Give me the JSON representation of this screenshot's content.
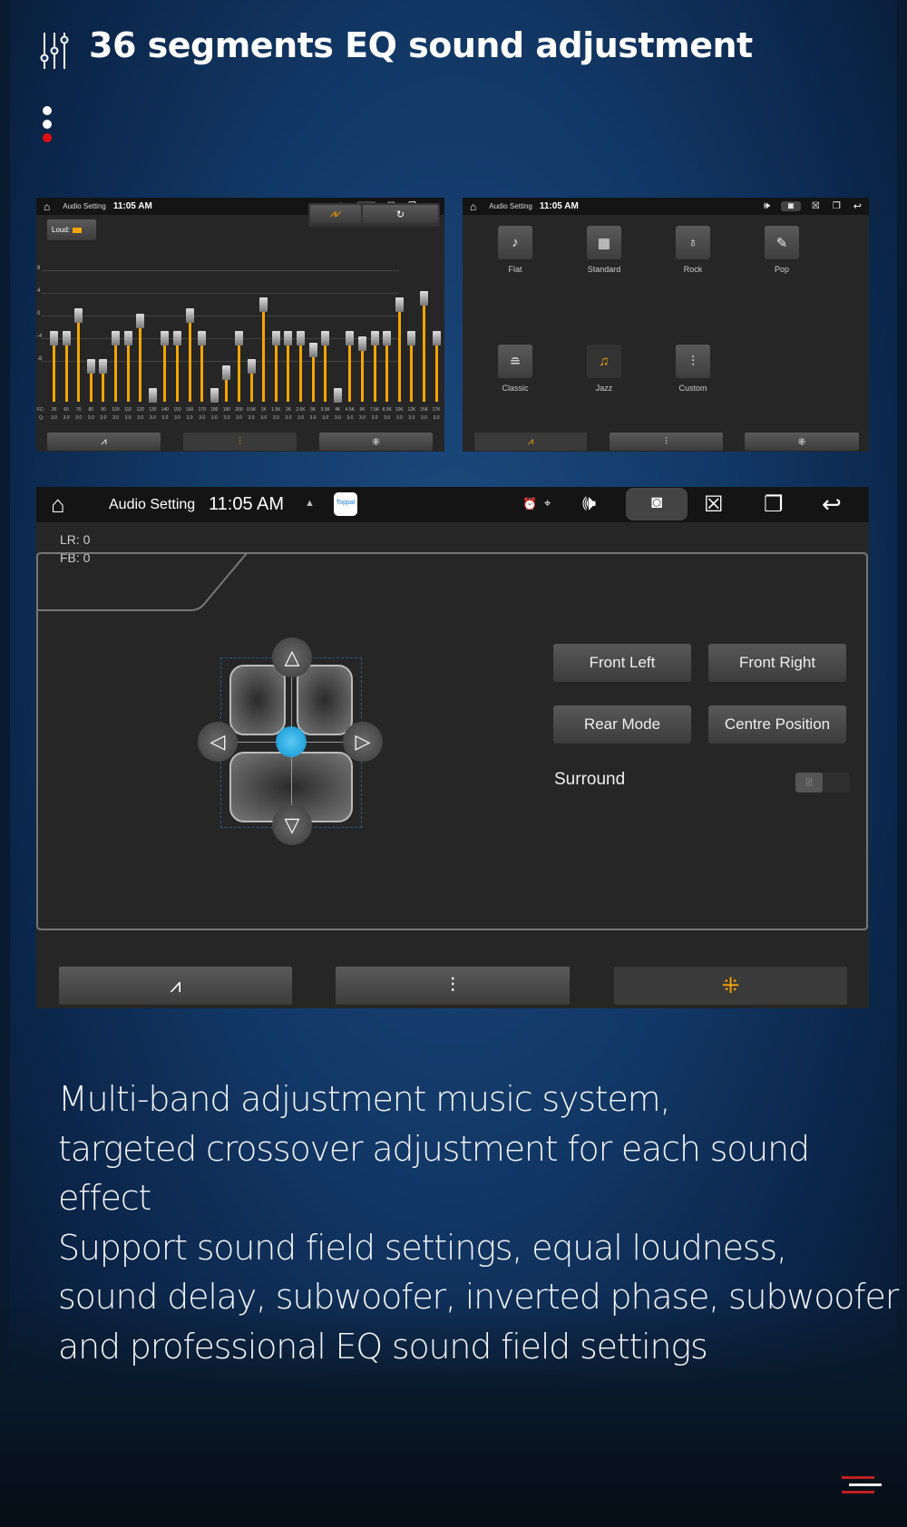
{
  "title": "36 segments EQ sound adjustment",
  "colors": {
    "accent": "#f5a500",
    "selected_blue": "#2aa9e0",
    "page_dot_active": "#e01010"
  },
  "status_bar": {
    "app": "Audio Setting",
    "time": "11:05 AM",
    "app_badge": "Toppal"
  },
  "eq_panel": {
    "loud_label": "Loud:",
    "y_ticks": [
      "8",
      "4",
      "0",
      "-4",
      "-8"
    ],
    "fc_prefix": "FC:",
    "q_prefix": "Q:",
    "bands": [
      {
        "fc": "30",
        "q": "3.0",
        "gain": -4
      },
      {
        "fc": "60",
        "q": "3.0",
        "gain": -4
      },
      {
        "fc": "70",
        "q": "3.0",
        "gain": 0
      },
      {
        "fc": "80",
        "q": "3.0",
        "gain": -9
      },
      {
        "fc": "90",
        "q": "3.0",
        "gain": -9
      },
      {
        "fc": "100",
        "q": "3.0",
        "gain": -4
      },
      {
        "fc": "110",
        "q": "3.0",
        "gain": -4
      },
      {
        "fc": "120",
        "q": "3.0",
        "gain": -1
      },
      {
        "fc": "130",
        "q": "3.0",
        "gain": -14
      },
      {
        "fc": "140",
        "q": "3.0",
        "gain": -4
      },
      {
        "fc": "150",
        "q": "3.0",
        "gain": -4
      },
      {
        "fc": "160",
        "q": "3.0",
        "gain": 0
      },
      {
        "fc": "170",
        "q": "3.0",
        "gain": -4
      },
      {
        "fc": "180",
        "q": "3.0",
        "gain": -14
      },
      {
        "fc": "190",
        "q": "3.0",
        "gain": -10
      },
      {
        "fc": "200",
        "q": "3.0",
        "gain": -4
      },
      {
        "fc": "0.5K",
        "q": "3.0",
        "gain": -9
      },
      {
        "fc": "1K",
        "q": "3.0",
        "gain": 2
      },
      {
        "fc": "1.5K",
        "q": "3.0",
        "gain": -4
      },
      {
        "fc": "2K",
        "q": "3.0",
        "gain": -4
      },
      {
        "fc": "2.5K",
        "q": "3.0",
        "gain": -4
      },
      {
        "fc": "3K",
        "q": "3.0",
        "gain": -6
      },
      {
        "fc": "3.5K",
        "q": "3.0",
        "gain": -4
      },
      {
        "fc": "4K",
        "q": "3.0",
        "gain": -14
      },
      {
        "fc": "4.5K",
        "q": "3.0",
        "gain": -4
      },
      {
        "fc": "5K",
        "q": "3.0",
        "gain": -5
      },
      {
        "fc": "7.5K",
        "q": "3.0",
        "gain": -4
      },
      {
        "fc": "8.5K",
        "q": "3.0",
        "gain": -4
      },
      {
        "fc": "10K",
        "q": "3.0",
        "gain": 2
      },
      {
        "fc": "12K",
        "q": "3.0",
        "gain": -4
      },
      {
        "fc": "15K",
        "q": "3.0",
        "gain": 3
      },
      {
        "fc": "17K",
        "q": "3.0",
        "gain": -4
      }
    ]
  },
  "preset_panel": {
    "presets": [
      {
        "label": "Flat",
        "icon": "music-note-icon",
        "glyph": "♪"
      },
      {
        "label": "Standard",
        "icon": "piano-icon",
        "glyph": "▦"
      },
      {
        "label": "Rock",
        "icon": "guitar-icon",
        "glyph": "♁"
      },
      {
        "label": "Pop",
        "icon": "microphone-icon",
        "glyph": "✎"
      },
      {
        "label": "Classic",
        "icon": "harp-icon",
        "glyph": "≘"
      },
      {
        "label": "Jazz",
        "icon": "saxophone-icon",
        "glyph": "♫"
      },
      {
        "label": "Custom",
        "icon": "sliders-icon",
        "glyph": "⫶"
      }
    ],
    "selected": "Jazz"
  },
  "sound_field": {
    "lr": "LR: 0",
    "fb": "FB: 0",
    "buttons": [
      "Front Left",
      "Front Right",
      "Rear Mode",
      "Centre Position"
    ],
    "surround_label": "Surround",
    "surround_on": false
  },
  "bottom_tabs": [
    {
      "icon": "waveform-icon"
    },
    {
      "icon": "equalizer-icon"
    },
    {
      "icon": "sound-field-icon",
      "selected": true
    }
  ],
  "description": [
    "Multi-band adjustment music system,",
    "targeted crossover adjustment for each sound effect",
    "Support sound field settings, equal loudness,",
    "sound delay, subwoofer, inverted phase, subwoofer",
    "and professional EQ sound field settings"
  ]
}
